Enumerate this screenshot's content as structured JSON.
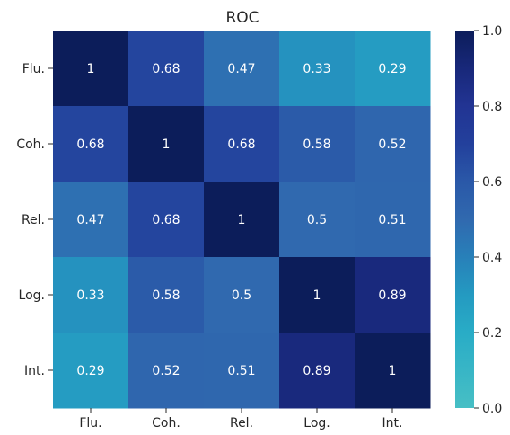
{
  "chart_data": {
    "type": "heatmap",
    "title": "ROC",
    "x_categories": [
      "Flu.",
      "Coh.",
      "Rel.",
      "Log.",
      "Int."
    ],
    "y_categories": [
      "Flu.",
      "Coh.",
      "Rel.",
      "Log.",
      "Int."
    ],
    "values": [
      [
        1,
        0.68,
        0.47,
        0.33,
        0.29
      ],
      [
        0.68,
        1,
        0.68,
        0.58,
        0.52
      ],
      [
        0.47,
        0.68,
        1,
        0.5,
        0.51
      ],
      [
        0.33,
        0.58,
        0.5,
        1,
        0.89
      ],
      [
        0.29,
        0.52,
        0.51,
        0.89,
        1
      ]
    ],
    "value_labels": [
      [
        "1",
        "0.68",
        "0.47",
        "0.33",
        "0.29"
      ],
      [
        "0.68",
        "1",
        "0.68",
        "0.58",
        "0.52"
      ],
      [
        "0.47",
        "0.68",
        "1",
        "0.5",
        "0.51"
      ],
      [
        "0.33",
        "0.58",
        "0.5",
        "1",
        "0.89"
      ],
      [
        "0.29",
        "0.52",
        "0.51",
        "0.89",
        "1"
      ]
    ],
    "colorbar": {
      "range": [
        0.0,
        1.0
      ],
      "ticks": [
        "0.0",
        "0.2",
        "0.4",
        "0.6",
        "0.8",
        "1.0"
      ],
      "colormap": "YlGnBu (teal to navy)",
      "low_color": "#47bfc5",
      "high_color": "#0c1d5a"
    },
    "grid": false
  }
}
